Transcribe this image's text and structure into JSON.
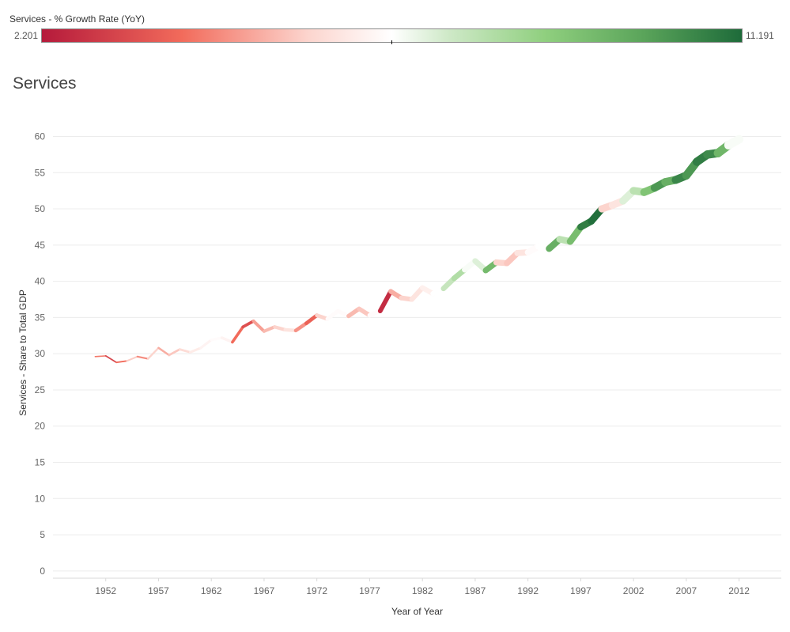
{
  "legend": {
    "title": "Services - % Growth Rate (YoY)",
    "min_label": "2.201",
    "max_label": "11.191",
    "min_value": 2.201,
    "max_value": 11.191,
    "mid_value": 6.696,
    "colors": {
      "low": "#b51a3b",
      "mid": "#ffffff",
      "high": "#1e6b3a"
    }
  },
  "title": "Services",
  "chart_data": {
    "type": "line",
    "title": "Services",
    "xlabel": "Year of Year",
    "ylabel": "Services - Share to Total GDP",
    "xlim": [
      1947,
      2016
    ],
    "ylim": [
      -1,
      63
    ],
    "x_ticks": [
      1952,
      1957,
      1962,
      1967,
      1972,
      1977,
      1982,
      1987,
      1992,
      1997,
      2002,
      2007,
      2012
    ],
    "y_ticks": [
      0,
      5,
      10,
      15,
      20,
      25,
      30,
      35,
      40,
      45,
      50,
      55,
      60
    ],
    "grid": true,
    "encoding": "line color and width encode Services - % Growth Rate (YoY)",
    "series": [
      {
        "x": [
          1951,
          1952,
          1953,
          1954,
          1955,
          1956,
          1957,
          1958,
          1959,
          1960,
          1961,
          1962,
          1963,
          1964,
          1965,
          1966,
          1967,
          1968,
          1969,
          1970,
          1971,
          1972,
          1973,
          1974,
          1975,
          1976,
          1977,
          1978,
          1979,
          1980,
          1981,
          1982,
          1983,
          1984,
          1985,
          1986,
          1987,
          1988,
          1989,
          1990,
          1991,
          1992,
          1993,
          1994,
          1995,
          1996,
          1997,
          1998,
          1999,
          2000,
          2001,
          2002,
          2003,
          2004,
          2005,
          2006,
          2007,
          2008,
          2009,
          2010,
          2011,
          2012
        ],
        "values": [
          29.6,
          29.7,
          28.8,
          29.0,
          29.6,
          29.3,
          30.8,
          29.8,
          30.6,
          30.2,
          30.8,
          31.9,
          32.2,
          31.6,
          33.7,
          34.5,
          33.1,
          33.7,
          33.3,
          33.2,
          34.2,
          35.3,
          34.8,
          35.9,
          35.2,
          36.2,
          35.3,
          35.9,
          38.6,
          37.7,
          37.5,
          39.1,
          38.3,
          39.0,
          40.4,
          41.6,
          42.8,
          41.5,
          42.6,
          42.5,
          43.9,
          44.0,
          44.8,
          44.5,
          45.8,
          45.5,
          47.5,
          48.3,
          50.0,
          50.5,
          51.1,
          52.5,
          52.3,
          52.9,
          53.7,
          54.0,
          54.6,
          56.5,
          57.5,
          57.7,
          58.8,
          59.6
        ],
        "growth_rate": [
          4.6,
          4.2,
          3.2,
          4.0,
          5.5,
          4.5,
          5.6,
          5.0,
          5.4,
          5.8,
          6.2,
          6.4,
          6.6,
          6.4,
          4.0,
          3.4,
          4.8,
          5.2,
          5.6,
          6.0,
          4.6,
          3.8,
          5.6,
          6.6,
          6.6,
          5.2,
          5.4,
          6.6,
          2.6,
          5.0,
          5.6,
          6.0,
          6.3,
          6.7,
          7.6,
          8.0,
          6.8,
          7.2,
          9.3,
          5.6,
          5.4,
          6.0,
          6.6,
          6.7,
          9.6,
          7.8,
          9.2,
          10.8,
          11.1,
          5.6,
          6.0,
          7.2,
          7.8,
          9.0,
          10.2,
          9.6,
          10.6,
          10.2,
          10.8,
          10.5,
          9.4,
          6.8
        ]
      }
    ]
  }
}
